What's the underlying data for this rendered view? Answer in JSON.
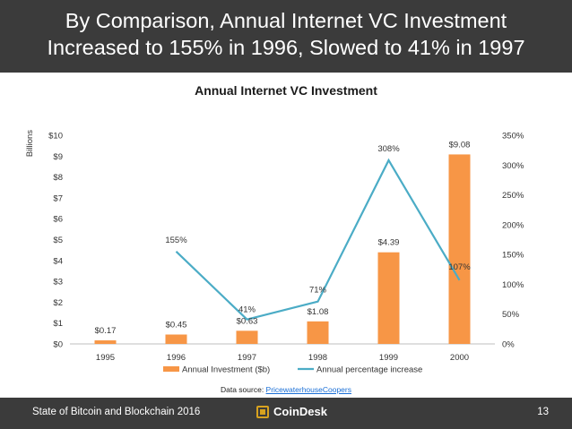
{
  "header": {
    "title_line1": "By Comparison, Annual Internet VC Investment",
    "title_line2": "Increased to 155% in 1996, Slowed to 41% in 1997"
  },
  "chart_data": {
    "type": "bar+line",
    "title": "Annual Internet VC Investment",
    "categories": [
      "1995",
      "1996",
      "1997",
      "1998",
      "1999",
      "2000"
    ],
    "y_left_label": "Billions",
    "y_left_ticks": [
      "$0",
      "$1",
      "$2",
      "$3",
      "$4",
      "$5",
      "$6",
      "$7",
      "$8",
      "$9",
      "$10"
    ],
    "y_left_range": [
      0,
      10
    ],
    "y_right_ticks": [
      "0%",
      "50%",
      "100%",
      "150%",
      "200%",
      "250%",
      "300%",
      "350%"
    ],
    "y_right_range": [
      0,
      350
    ],
    "series": [
      {
        "name": "Annual Investment ($b)",
        "type": "bar",
        "axis": "left",
        "color": "#f79646",
        "values": [
          0.17,
          0.45,
          0.63,
          1.08,
          4.39,
          9.08
        ],
        "labels": [
          "$0.17",
          "$0.45",
          "$0.63",
          "$1.08",
          "$4.39",
          "$9.08"
        ]
      },
      {
        "name": "Annual percentage increase",
        "type": "line",
        "axis": "right",
        "color": "#4bacc6",
        "values": [
          null,
          155,
          41,
          71,
          308,
          107
        ],
        "labels": [
          "",
          "155%",
          "41%",
          "71%",
          "308%",
          "107%"
        ]
      }
    ],
    "legend_position": "bottom",
    "grid": false
  },
  "source": {
    "prefix": "Data source: ",
    "link_text": "PricewaterhouseCoopers"
  },
  "footer": {
    "left_text": "State of Bitcoin and Blockchain 2016",
    "logo_text": "CoinDesk",
    "page_number": "13",
    "logo_color": "#d8a21f"
  }
}
